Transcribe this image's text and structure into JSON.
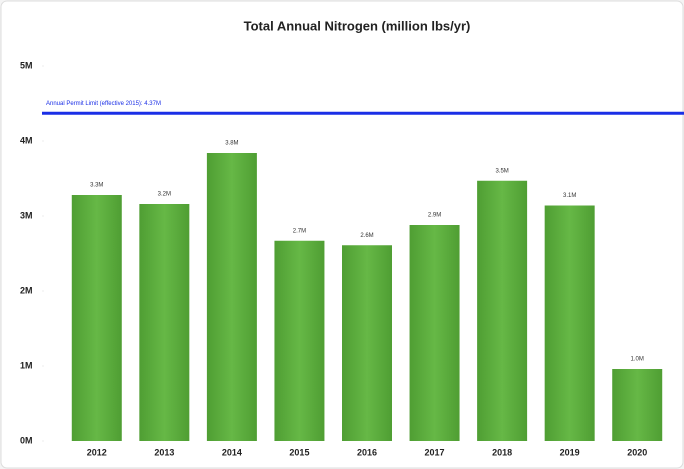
{
  "chart_data": {
    "type": "bar",
    "title": "Total Annual Nitrogen (million lbs/yr)",
    "categories": [
      "2012",
      "2013",
      "2014",
      "2015",
      "2016",
      "2017",
      "2018",
      "2019",
      "2020"
    ],
    "values": [
      3280000,
      3160000,
      3840000,
      2670000,
      2610000,
      2880000,
      3470000,
      3140000,
      960000
    ],
    "value_labels": [
      "3.3M",
      "3.2M",
      "3.8M",
      "2.7M",
      "2.6M",
      "2.9M",
      "3.5M",
      "3.1M",
      "1.0M"
    ],
    "color": "#5aae3a",
    "ylim": [
      0,
      5000000
    ],
    "yticks": [
      {
        "value": 0,
        "label": "0M"
      },
      {
        "value": 1000000,
        "label": "1M"
      },
      {
        "value": 2000000,
        "label": "2M"
      },
      {
        "value": 3000000,
        "label": "3M"
      },
      {
        "value": 4000000,
        "label": "4M"
      },
      {
        "value": 5000000,
        "label": "5M"
      }
    ],
    "reference_line": {
      "value": 4370000,
      "label": "Annual Permit Limit (effective 2015): 4.37M",
      "color": "#1a2ee6"
    }
  }
}
